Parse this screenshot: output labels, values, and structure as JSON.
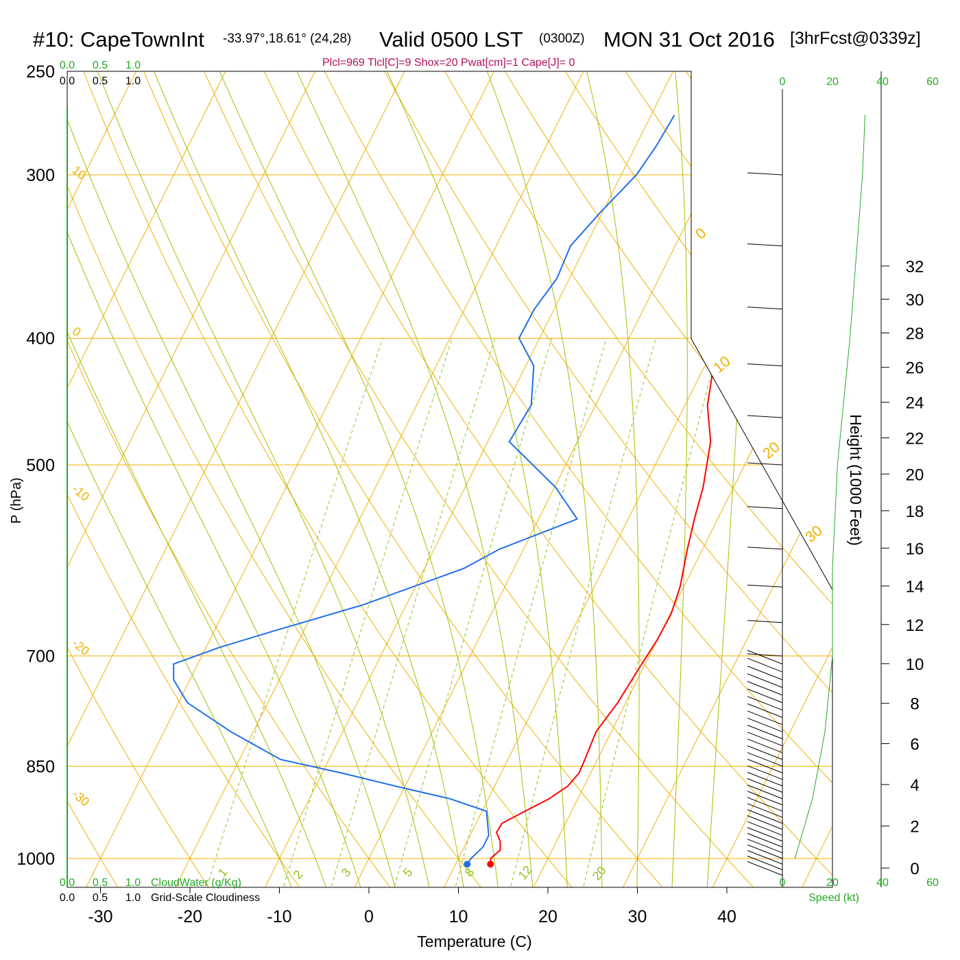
{
  "header": {
    "station": "#10: CapeTownInt",
    "coords": "-33.97°,18.61° (24,28)",
    "valid": "Valid 0500 LST",
    "zulu": "(0300Z)",
    "date": "MON 31 Oct 2016",
    "forecast": "[3hrFcst@0339z]",
    "stats": "Plcl=969 Tlcl[C]=9 Shox=20 Pwat[cm]=1 Cape[J]= 0"
  },
  "colors": {
    "temperature": "#ff0000",
    "dewpoint": "#1f6fe8",
    "isotherm": "#f0b000",
    "dry_adiabat": "#f0b000",
    "moist_adiabat": "#a0c000",
    "mixing_ratio": "#90c020",
    "scale_green": "#22aa22",
    "stats": "#b0105a"
  },
  "chart_data": {
    "type": "line",
    "title": "#10: CapeTownInt",
    "xlabel": "Temperature (C)",
    "ylabel": "P (hPa)",
    "y_right_label": "Height (1000 Feet)",
    "x_ticks": [
      "-30",
      "-20",
      "-10",
      "0",
      "10",
      "20",
      "30",
      "40"
    ],
    "p_ticks": [
      "250",
      "300",
      "400",
      "500",
      "700",
      "850",
      "1000"
    ],
    "height_ticks": [
      "0",
      "2",
      "4",
      "6",
      "8",
      "10",
      "12",
      "14",
      "16",
      "18",
      "20",
      "22",
      "24",
      "26",
      "28",
      "30",
      "32"
    ],
    "speed_ticks": [
      "0",
      "20",
      "40",
      "60"
    ],
    "speed_label": "Speed (kt)",
    "cloud_scale": [
      "0.0",
      "0.5",
      "1.0"
    ],
    "cloud_water_label": "CloudWater (g/Kg)",
    "cloudiness_label": "Grid-Scale Cloudiness",
    "isotherm_labels": [
      "10",
      "0",
      "-10",
      "-20",
      "-30"
    ],
    "dry_adiabat_labels": [
      "0",
      "10",
      "20",
      "30"
    ],
    "mixing_ratio_labels": [
      "1",
      "2",
      "3",
      "5",
      "8",
      "12",
      "20"
    ],
    "series": [
      {
        "name": "Temperature",
        "pressure": [
          1010,
          1000,
          985,
          970,
          955,
          940,
          920,
          900,
          880,
          860,
          840,
          800,
          760,
          720,
          680,
          650,
          620,
          580,
          550,
          520,
          480,
          450,
          420,
          400,
          380,
          360,
          340,
          320,
          300,
          285,
          270
        ],
        "temp": [
          13.9,
          13.6,
          14.2,
          13.7,
          12.8,
          12.9,
          14.8,
          16.8,
          18.2,
          18.7,
          18.6,
          18.3,
          19.1,
          19.5,
          20.0,
          20.1,
          19.6,
          18.3,
          17.4,
          16.6,
          14.9,
          12.5,
          11.0,
          9.7,
          8.7,
          7.3,
          5.6,
          3.8,
          1.8,
          0.6,
          0.1
        ]
      },
      {
        "name": "Dewpoint",
        "pressure": [
          1010,
          1000,
          980,
          960,
          940,
          920,
          900,
          880,
          860,
          840,
          800,
          760,
          730,
          710,
          690,
          670,
          640,
          600,
          580,
          550,
          520,
          480,
          450,
          420,
          400,
          380,
          360,
          340,
          320,
          300,
          285,
          270
        ],
        "dewp": [
          11.3,
          11.4,
          12.1,
          12.1,
          11.3,
          10.5,
          5.7,
          -1.2,
          -7.9,
          -15.4,
          -22.5,
          -29.0,
          -31.8,
          -32.7,
          -28.6,
          -23.4,
          -14.9,
          -5.6,
          -2.7,
          4.3,
          0.1,
          -7.6,
          -7.2,
          -9.1,
          -12.3,
          -12.2,
          -11.4,
          -11.7,
          -10.2,
          -8.3,
          -7.7,
          -7.4
        ]
      }
    ],
    "wind_speed_kt": [
      {
        "pressure": 1000,
        "speed": 5
      },
      {
        "pressure": 900,
        "speed": 12
      },
      {
        "pressure": 800,
        "speed": 17
      },
      {
        "pressure": 700,
        "speed": 20
      },
      {
        "pressure": 600,
        "speed": 20
      },
      {
        "pressure": 500,
        "speed": 22
      },
      {
        "pressure": 400,
        "speed": 27
      },
      {
        "pressure": 300,
        "speed": 32
      },
      {
        "pressure": 270,
        "speed": 33
      }
    ],
    "xlim": [
      -34,
      36
    ],
    "ylim": [
      1050,
      250
    ]
  }
}
